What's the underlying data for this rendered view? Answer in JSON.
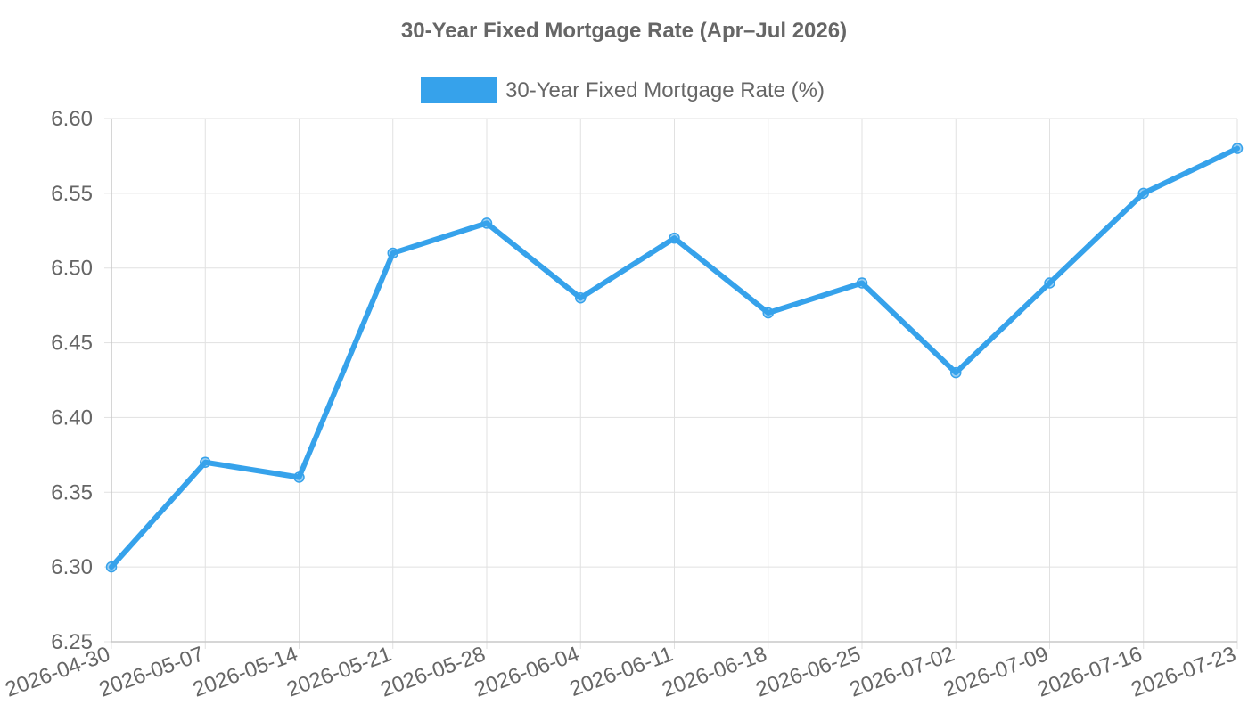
{
  "chart_data": {
    "type": "line",
    "title": "30-Year Fixed Mortgage Rate (Apr–Jul 2026)",
    "xlabel": "",
    "ylabel": "",
    "x": [
      "2026-04-30",
      "2026-05-07",
      "2026-05-14",
      "2026-05-21",
      "2026-05-28",
      "2026-06-04",
      "2026-06-11",
      "2026-06-18",
      "2026-06-25",
      "2026-07-02",
      "2026-07-09",
      "2026-07-16",
      "2026-07-23"
    ],
    "series": [
      {
        "name": "30-Year Fixed Mortgage Rate (%)",
        "values": [
          6.3,
          6.37,
          6.36,
          6.51,
          6.53,
          6.48,
          6.52,
          6.47,
          6.49,
          6.43,
          6.49,
          6.55,
          6.58
        ],
        "color": "#36a2eb"
      }
    ],
    "ylim": [
      6.25,
      6.6
    ],
    "yticks": [
      "6.25",
      "6.30",
      "6.35",
      "6.40",
      "6.45",
      "6.50",
      "6.55",
      "6.60"
    ],
    "grid": true,
    "legend_position": "top-center"
  }
}
